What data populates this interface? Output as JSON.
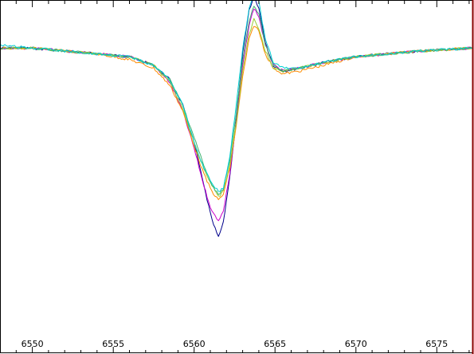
{
  "chart_data": {
    "type": "line",
    "title": "",
    "xlabel": "",
    "ylabel": "",
    "xlim": [
      6548.0,
      6577.2
    ],
    "ylim": [
      -1.0,
      0.14
    ],
    "x_ticks": [
      6550,
      6555,
      6560,
      6565,
      6570,
      6575
    ],
    "x_tick_labels": [
      "6550",
      "6555",
      "6560",
      "6565",
      "6570",
      "6575"
    ],
    "y_tick_labels": [],
    "grid": false,
    "legend": "none",
    "frame_color": "#000000",
    "right_edge_color": "#8b0000",
    "series": [
      {
        "color": "#00008b",
        "x": [
          6548.0,
          6550,
          6552,
          6554,
          6556,
          6557.5,
          6558.5,
          6559.3,
          6560.0,
          6560.6,
          6561.1,
          6561.5,
          6561.8,
          6562.2,
          6562.6,
          6563.0,
          6563.4,
          6563.7,
          6564.0,
          6564.4,
          6564.9,
          6565.5,
          6566.5,
          6568,
          6570,
          6572,
          6574,
          6577.2
        ],
        "y": [
          0.0,
          0.0,
          -0.01,
          -0.02,
          -0.03,
          -0.06,
          -0.11,
          -0.2,
          -0.33,
          -0.48,
          -0.6,
          -0.66,
          -0.61,
          -0.45,
          -0.25,
          -0.02,
          0.13,
          0.18,
          0.14,
          0.02,
          -0.06,
          -0.08,
          -0.07,
          -0.05,
          -0.03,
          -0.02,
          -0.01,
          0.0
        ]
      },
      {
        "color": "#cc00cc",
        "x": [
          6548.0,
          6550,
          6552,
          6554,
          6556,
          6557.5,
          6558.5,
          6559.3,
          6560.0,
          6560.6,
          6561.1,
          6561.5,
          6561.8,
          6562.2,
          6562.6,
          6563.0,
          6563.4,
          6563.7,
          6564.0,
          6564.4,
          6564.9,
          6565.5,
          6566.5,
          6568,
          6570,
          6572,
          6574,
          6577.2
        ],
        "y": [
          0.0,
          0.0,
          -0.01,
          -0.02,
          -0.03,
          -0.06,
          -0.12,
          -0.22,
          -0.35,
          -0.48,
          -0.57,
          -0.6,
          -0.57,
          -0.44,
          -0.26,
          -0.06,
          0.08,
          0.14,
          0.11,
          0.01,
          -0.06,
          -0.08,
          -0.07,
          -0.05,
          -0.03,
          -0.02,
          -0.01,
          0.0
        ]
      },
      {
        "color": "#ff8c00",
        "x": [
          6548.0,
          6550,
          6552,
          6554,
          6556,
          6557.5,
          6558.5,
          6559.3,
          6560.0,
          6560.6,
          6561.1,
          6561.5,
          6561.8,
          6562.2,
          6562.6,
          6563.0,
          6563.4,
          6563.7,
          6564.0,
          6564.4,
          6564.9,
          6565.5,
          6566.5,
          6568,
          6570,
          6572,
          6574,
          6577.2
        ],
        "y": [
          0.0,
          0.0,
          -0.01,
          -0.02,
          -0.04,
          -0.07,
          -0.13,
          -0.22,
          -0.34,
          -0.44,
          -0.5,
          -0.53,
          -0.51,
          -0.42,
          -0.27,
          -0.1,
          0.03,
          0.08,
          0.06,
          -0.02,
          -0.07,
          -0.09,
          -0.08,
          -0.06,
          -0.03,
          -0.02,
          -0.01,
          0.0
        ]
      },
      {
        "color": "#9acd32",
        "x": [
          6548.0,
          6550,
          6552,
          6554,
          6556,
          6557.5,
          6558.5,
          6559.3,
          6560.0,
          6560.6,
          6561.1,
          6561.5,
          6561.8,
          6562.2,
          6562.6,
          6563.0,
          6563.4,
          6563.7,
          6564.0,
          6564.4,
          6564.9,
          6565.5,
          6566.5,
          6568,
          6570,
          6572,
          6574,
          6577.2
        ],
        "y": [
          0.0,
          0.0,
          -0.01,
          -0.02,
          -0.03,
          -0.06,
          -0.12,
          -0.21,
          -0.33,
          -0.42,
          -0.48,
          -0.52,
          -0.5,
          -0.41,
          -0.26,
          -0.08,
          0.05,
          0.1,
          0.07,
          -0.01,
          -0.07,
          -0.08,
          -0.07,
          -0.05,
          -0.03,
          -0.02,
          -0.01,
          0.0
        ]
      },
      {
        "color": "#3cb371",
        "x": [
          6548.0,
          6550,
          6552,
          6554,
          6556,
          6557.5,
          6558.5,
          6559.3,
          6560.0,
          6560.6,
          6561.1,
          6561.5,
          6561.8,
          6562.2,
          6562.6,
          6563.0,
          6563.4,
          6563.7,
          6564.0,
          6564.4,
          6564.9,
          6565.5,
          6566.5,
          6568,
          6570,
          6572,
          6574,
          6577.2
        ],
        "y": [
          0.0,
          0.0,
          -0.01,
          -0.02,
          -0.03,
          -0.06,
          -0.11,
          -0.2,
          -0.31,
          -0.41,
          -0.48,
          -0.51,
          -0.49,
          -0.39,
          -0.23,
          -0.04,
          0.09,
          0.15,
          0.12,
          0.01,
          -0.06,
          -0.08,
          -0.07,
          -0.05,
          -0.03,
          -0.02,
          -0.01,
          0.0
        ]
      },
      {
        "color": "#00ced1",
        "x": [
          6548.0,
          6550,
          6552,
          6554,
          6556,
          6557.5,
          6558.5,
          6559.3,
          6560.0,
          6560.6,
          6561.1,
          6561.5,
          6561.8,
          6562.2,
          6562.6,
          6563.0,
          6563.4,
          6563.7,
          6564.0,
          6564.4,
          6564.9,
          6565.5,
          6566.5,
          6568,
          6570,
          6572,
          6574,
          6577.2
        ],
        "y": [
          0.01,
          0.0,
          -0.01,
          -0.02,
          -0.03,
          -0.06,
          -0.11,
          -0.2,
          -0.33,
          -0.42,
          -0.47,
          -0.5,
          -0.49,
          -0.38,
          -0.2,
          0.0,
          0.14,
          0.2,
          0.16,
          0.03,
          -0.05,
          -0.07,
          -0.07,
          -0.05,
          -0.03,
          -0.02,
          -0.01,
          0.0
        ]
      }
    ]
  }
}
